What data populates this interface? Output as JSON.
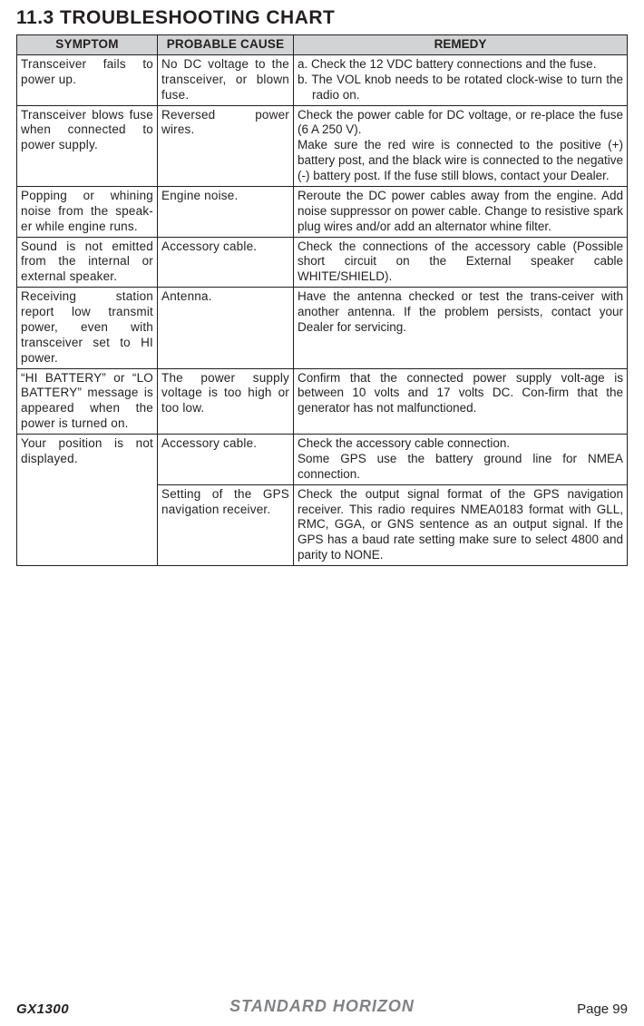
{
  "section_title": "11.3  TROUBLESHOOTING CHART",
  "headers": {
    "symptom": "SYMPTOM",
    "cause": "PROBABLE CAUSE",
    "remedy": "REMEDY"
  },
  "rows": [
    {
      "symptom": "Transceiver fails to power up.",
      "cause": "No DC voltage to the transceiver, or blown fuse.",
      "remedy_list": [
        "a. Check the 12 VDC battery connections and the fuse.",
        "b. The VOL knob needs to be rotated clock-wise to turn the radio on."
      ]
    },
    {
      "symptom": "Transceiver blows fuse when connected to power supply.",
      "cause": "Reversed power wires.",
      "remedy": "Check the power cable for DC voltage, or re-place the fuse (6 A 250 V).\nMake sure the red wire is connected to the positive (+) battery post, and the black wire is connected to the negative (-) battery post. If the fuse still blows, contact your Dealer."
    },
    {
      "symptom": "Popping or whining noise from the speak-er while engine runs.",
      "cause": "Engine noise.",
      "remedy": "Reroute the DC power cables away from the engine. Add noise suppressor on power cable. Change to resistive spark plug wires and/or add an alternator whine filter."
    },
    {
      "symptom": "Sound is not emitted from the internal or external speaker.",
      "cause": "Accessory cable.",
      "remedy": "Check the connections of the accessory cable (Possible short circuit on the External speaker cable WHITE/SHIELD)."
    },
    {
      "symptom": "Receiving station report low transmit power, even with transceiver set to HI power.",
      "cause": "Antenna.",
      "remedy": "Have the antenna checked or test the trans-ceiver with another antenna. If the problem persists, contact your Dealer for servicing."
    },
    {
      "symptom": "“HI BATTERY” or “LO BATTERY” message is appeared when the power is turned on.",
      "cause": "The power supply voltage is too high or too low.",
      "remedy": "Confirm that the connected power supply volt-age is between 10 volts and 17 volts DC. Con-firm that the generator has not malfunctioned."
    },
    {
      "symptom": "Your position is not displayed.",
      "symptom_rowspan": 2,
      "cause": "Accessory cable.",
      "remedy": "Check the accessory cable connection.\nSome GPS use the battery ground line for NMEA connection."
    },
    {
      "cause": "Setting of the GPS navigation receiver.",
      "remedy": "Check the output signal format of the GPS navigation receiver. This radio requires NMEA0183 format with GLL, RMC, GGA, or GNS sentence as an output signal. If the GPS has a baud rate setting make sure to select 4800 and parity to NONE."
    }
  ],
  "footer": {
    "left": "GX1300",
    "right": "Page 99",
    "brand": "STANDARD HORIZON"
  },
  "colors": {
    "header_bg": "#d1d3d4",
    "border": "#231f20",
    "brand_fill": "#808285"
  }
}
